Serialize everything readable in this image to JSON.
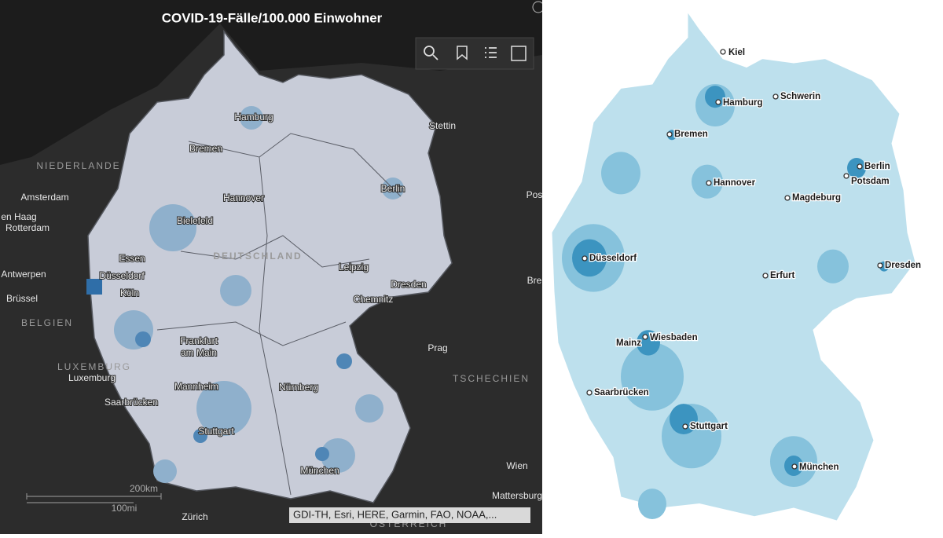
{
  "left_map": {
    "title": "COVID-19-Fälle/100.000 Einwohner",
    "labels": [
      "Hamburg",
      "Stettin",
      "Bremen",
      "NIEDERLANDE",
      "Amsterdam",
      "Hannover",
      "Berlin",
      "Pos",
      "en Haag",
      "Rotterdam",
      "Bielefeld",
      "Essen",
      "DEUTSCHLAND",
      "Antwerpen",
      "Düsseldorf",
      "Leipzig",
      "Dresden",
      "Bre",
      "Brüssel",
      "Köln",
      "Chemnitz",
      "BELGIEN",
      "Frankfurt",
      "am Main",
      "Prag",
      "LUXEMBURG",
      "Luxemburg",
      "TSCHECHIEN",
      "Mannheim",
      "Nürnberg",
      "Saarbrücken",
      "Stuttgart",
      "München",
      "Wien",
      "Mattersburg",
      "Zürich",
      "ÖSTERREICH"
    ],
    "scale": {
      "km": "200km",
      "mi": "100mi"
    },
    "attribution": "GDI-TH, Esri, HERE, Garmin, FAO, NOAA,..."
  },
  "right_map": {
    "labels": [
      "Kiel",
      "Hamburg",
      "Schwerin",
      "Bremen",
      "Berlin",
      "Potsdam",
      "Hannover",
      "Magdeburg",
      "Düsseldorf",
      "Erfurt",
      "Dresden",
      "Mainz",
      "Wiesbaden",
      "Saarbrücken",
      "Stuttgart",
      "München"
    ]
  }
}
